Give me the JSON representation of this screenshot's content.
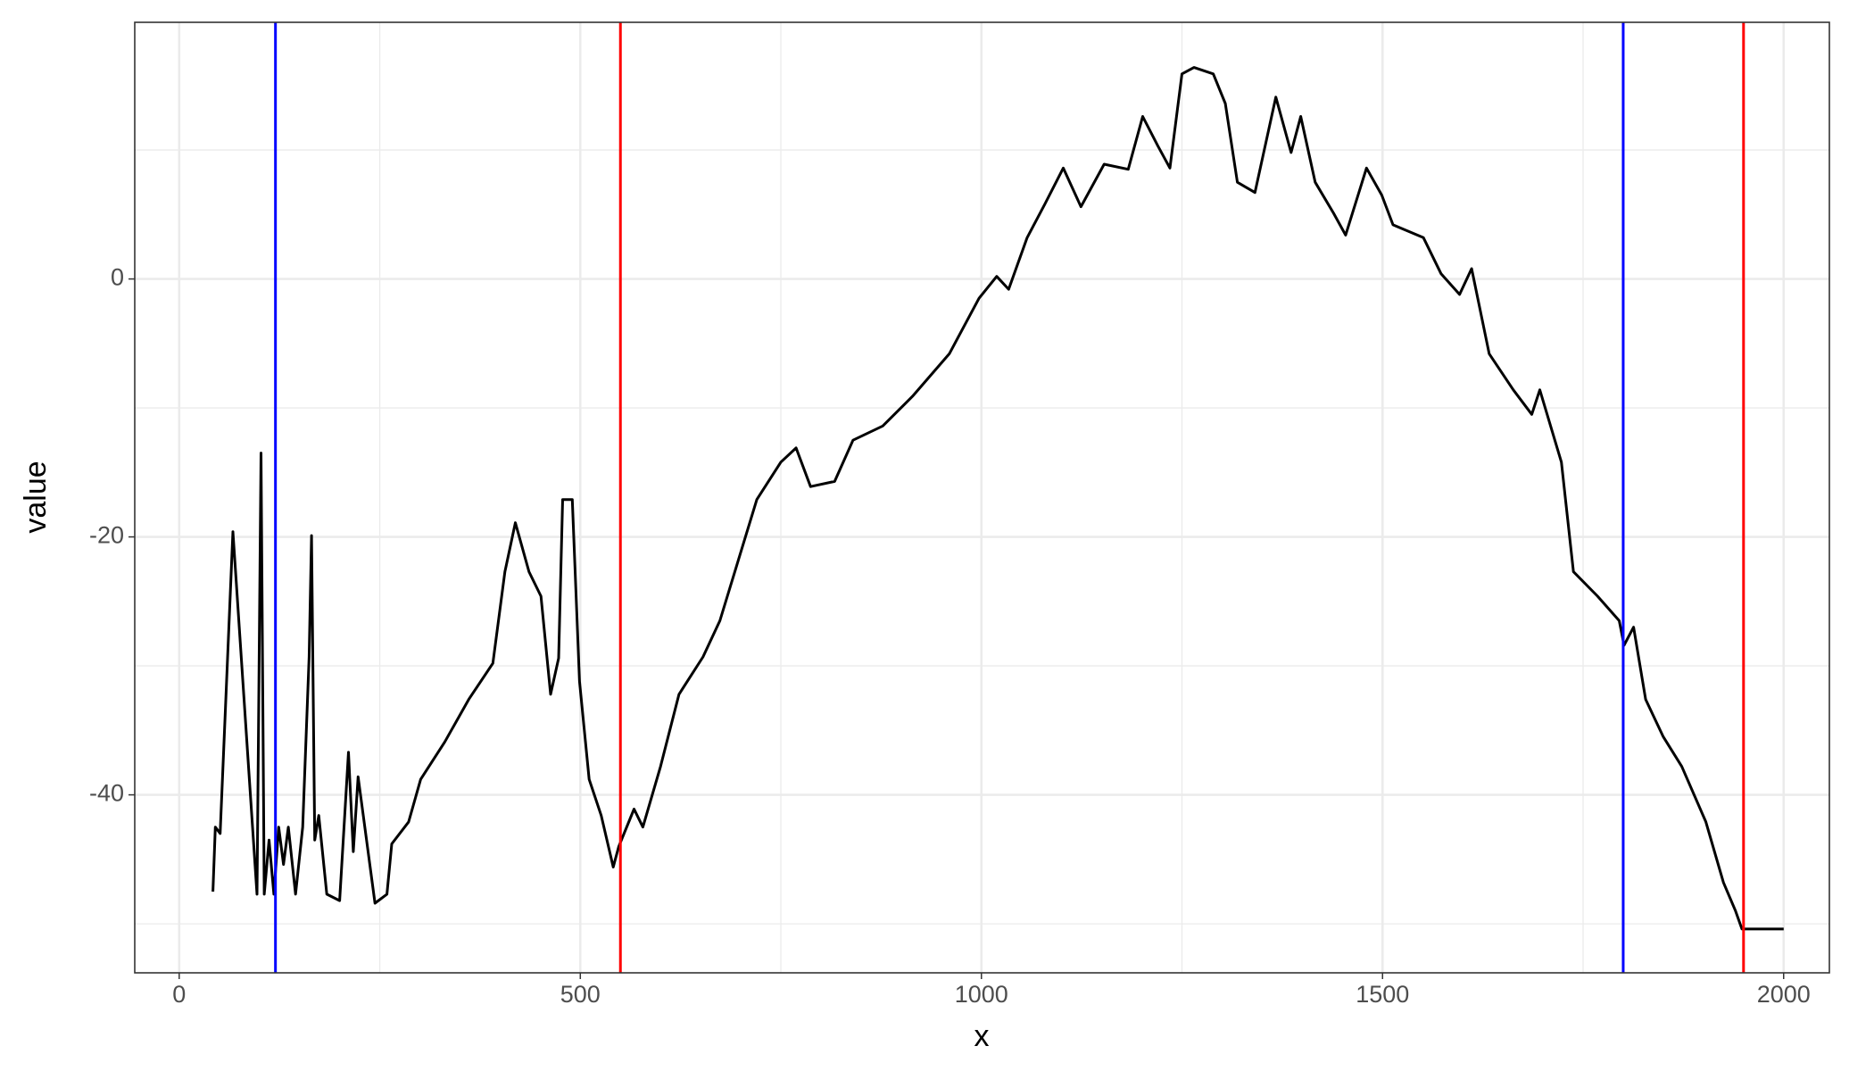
{
  "chart_data": {
    "type": "line",
    "x_label": "x",
    "y_label": "value",
    "color": "#000000",
    "x": [
      42,
      45,
      51,
      67,
      97,
      102,
      106,
      112,
      118,
      124,
      130,
      136,
      145,
      154,
      162,
      165,
      169,
      174,
      184,
      200,
      211,
      217,
      223,
      244,
      259,
      265,
      286,
      301,
      331,
      361,
      391,
      406,
      419,
      436,
      451,
      463,
      473,
      478,
      490,
      499,
      511,
      526,
      541,
      548,
      567,
      578,
      600,
      623,
      653,
      674,
      697,
      720,
      750,
      769,
      787,
      817,
      840,
      877,
      914,
      960,
      997,
      1019,
      1034,
      1057,
      1079,
      1102,
      1124,
      1153,
      1183,
      1201,
      1220,
      1235,
      1250,
      1265,
      1289,
      1304,
      1319,
      1341,
      1367,
      1386,
      1398,
      1416,
      1439,
      1454,
      1480,
      1499,
      1513,
      1551,
      1573,
      1596,
      1611,
      1633,
      1663,
      1686,
      1696,
      1723,
      1738,
      1768,
      1795,
      1801,
      1813,
      1828,
      1850,
      1873,
      1903,
      1925,
      1940,
      1948,
      2000
    ],
    "values": [
      -47.5,
      -42.5,
      -43,
      -19.6,
      -47.7,
      -13.5,
      -47.7,
      -43.5,
      -47.7,
      -42.5,
      -45.4,
      -42.5,
      -47.7,
      -42.5,
      -29.3,
      -19.9,
      -43.5,
      -41.6,
      -47.7,
      -48.2,
      -36.7,
      -44.4,
      -38.6,
      -48.4,
      -47.7,
      -43.8,
      -42.1,
      -38.8,
      -35.9,
      -32.6,
      -29.8,
      -22.7,
      -18.9,
      -22.7,
      -24.6,
      -32.2,
      -29.4,
      -17.1,
      -17.1,
      -31.2,
      -38.8,
      -41.6,
      -45.6,
      -44,
      -41.1,
      -42.5,
      -37.8,
      -32.2,
      -29.3,
      -26.5,
      -21.8,
      -17.1,
      -14.2,
      -13.1,
      -16.1,
      -15.7,
      -12.5,
      -11.4,
      -9.1,
      -5.8,
      -1.5,
      0.2,
      -0.8,
      3.2,
      5.8,
      8.6,
      5.6,
      8.9,
      8.5,
      12.6,
      10.3,
      8.6,
      15.9,
      16.4,
      15.9,
      13.6,
      7.5,
      6.7,
      14.1,
      9.8,
      12.6,
      7.5,
      5.1,
      3.4,
      8.6,
      6.5,
      4.2,
      3.2,
      0.4,
      -1.2,
      0.8,
      -5.8,
      -8.6,
      -10.5,
      -8.6,
      -14.2,
      -22.7,
      -24.6,
      -26.5,
      -28.4,
      -27,
      -32.6,
      -35.5,
      -37.8,
      -42.1,
      -46.8,
      -49,
      -50.4,
      -50.4
    ],
    "vlines": [
      {
        "x": 120,
        "color": "#0000ff"
      },
      {
        "x": 550,
        "color": "#ff0000"
      },
      {
        "x": 1800,
        "color": "#0000ff"
      },
      {
        "x": 1950,
        "color": "#ff0000"
      }
    ],
    "xlim": [
      -55.4,
      2057
    ],
    "ylim": [
      -53.8,
      19.9
    ],
    "xticks": [
      0,
      500,
      1000,
      1500,
      2000
    ],
    "yticks": [
      -40,
      -20,
      0
    ],
    "xminor": [
      250,
      750,
      1250,
      1750
    ],
    "yminor": [
      -50,
      -30,
      -10,
      10
    ],
    "grid": true
  }
}
